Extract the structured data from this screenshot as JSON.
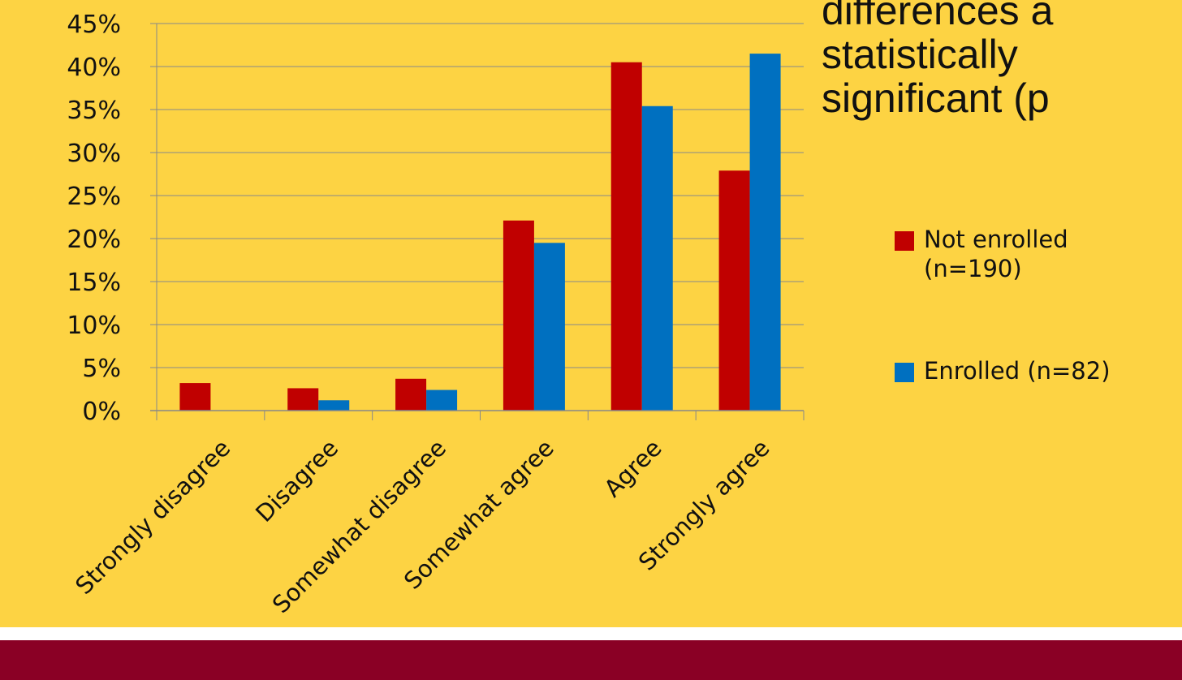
{
  "colors": {
    "background": "#FDD343",
    "not_enrolled": "#C00000",
    "enrolled": "#0070C0",
    "footer": "#8A0025",
    "gridline": "#888888"
  },
  "side_text": {
    "line1": "differences a",
    "line2": "statistically",
    "line3": "significant (p"
  },
  "legend": {
    "items": [
      {
        "label_line1": "Not enrolled",
        "label_line2": "(n=190)",
        "color": "#C00000"
      },
      {
        "label_line1": "Enrolled (n=82)",
        "label_line2": "",
        "color": "#0070C0"
      }
    ]
  },
  "chart_data": {
    "type": "bar",
    "categories": [
      "Strongly disagree",
      "Disagree",
      "Somewhat disagree",
      "Somewhat agree",
      "Agree",
      "Strongly agree"
    ],
    "series": [
      {
        "name": "Not enrolled (n=190)",
        "values": [
          3.2,
          2.6,
          3.7,
          22.1,
          40.5,
          27.9
        ]
      },
      {
        "name": "Enrolled (n=82)",
        "values": [
          0,
          1.2,
          2.4,
          19.5,
          35.4,
          41.5
        ]
      }
    ],
    "ylim": [
      0,
      45
    ],
    "yticks": [
      "0%",
      "5%",
      "10%",
      "15%",
      "20%",
      "25%",
      "30%",
      "35%",
      "40%",
      "45%"
    ],
    "grid": true,
    "legend_position": "right"
  }
}
